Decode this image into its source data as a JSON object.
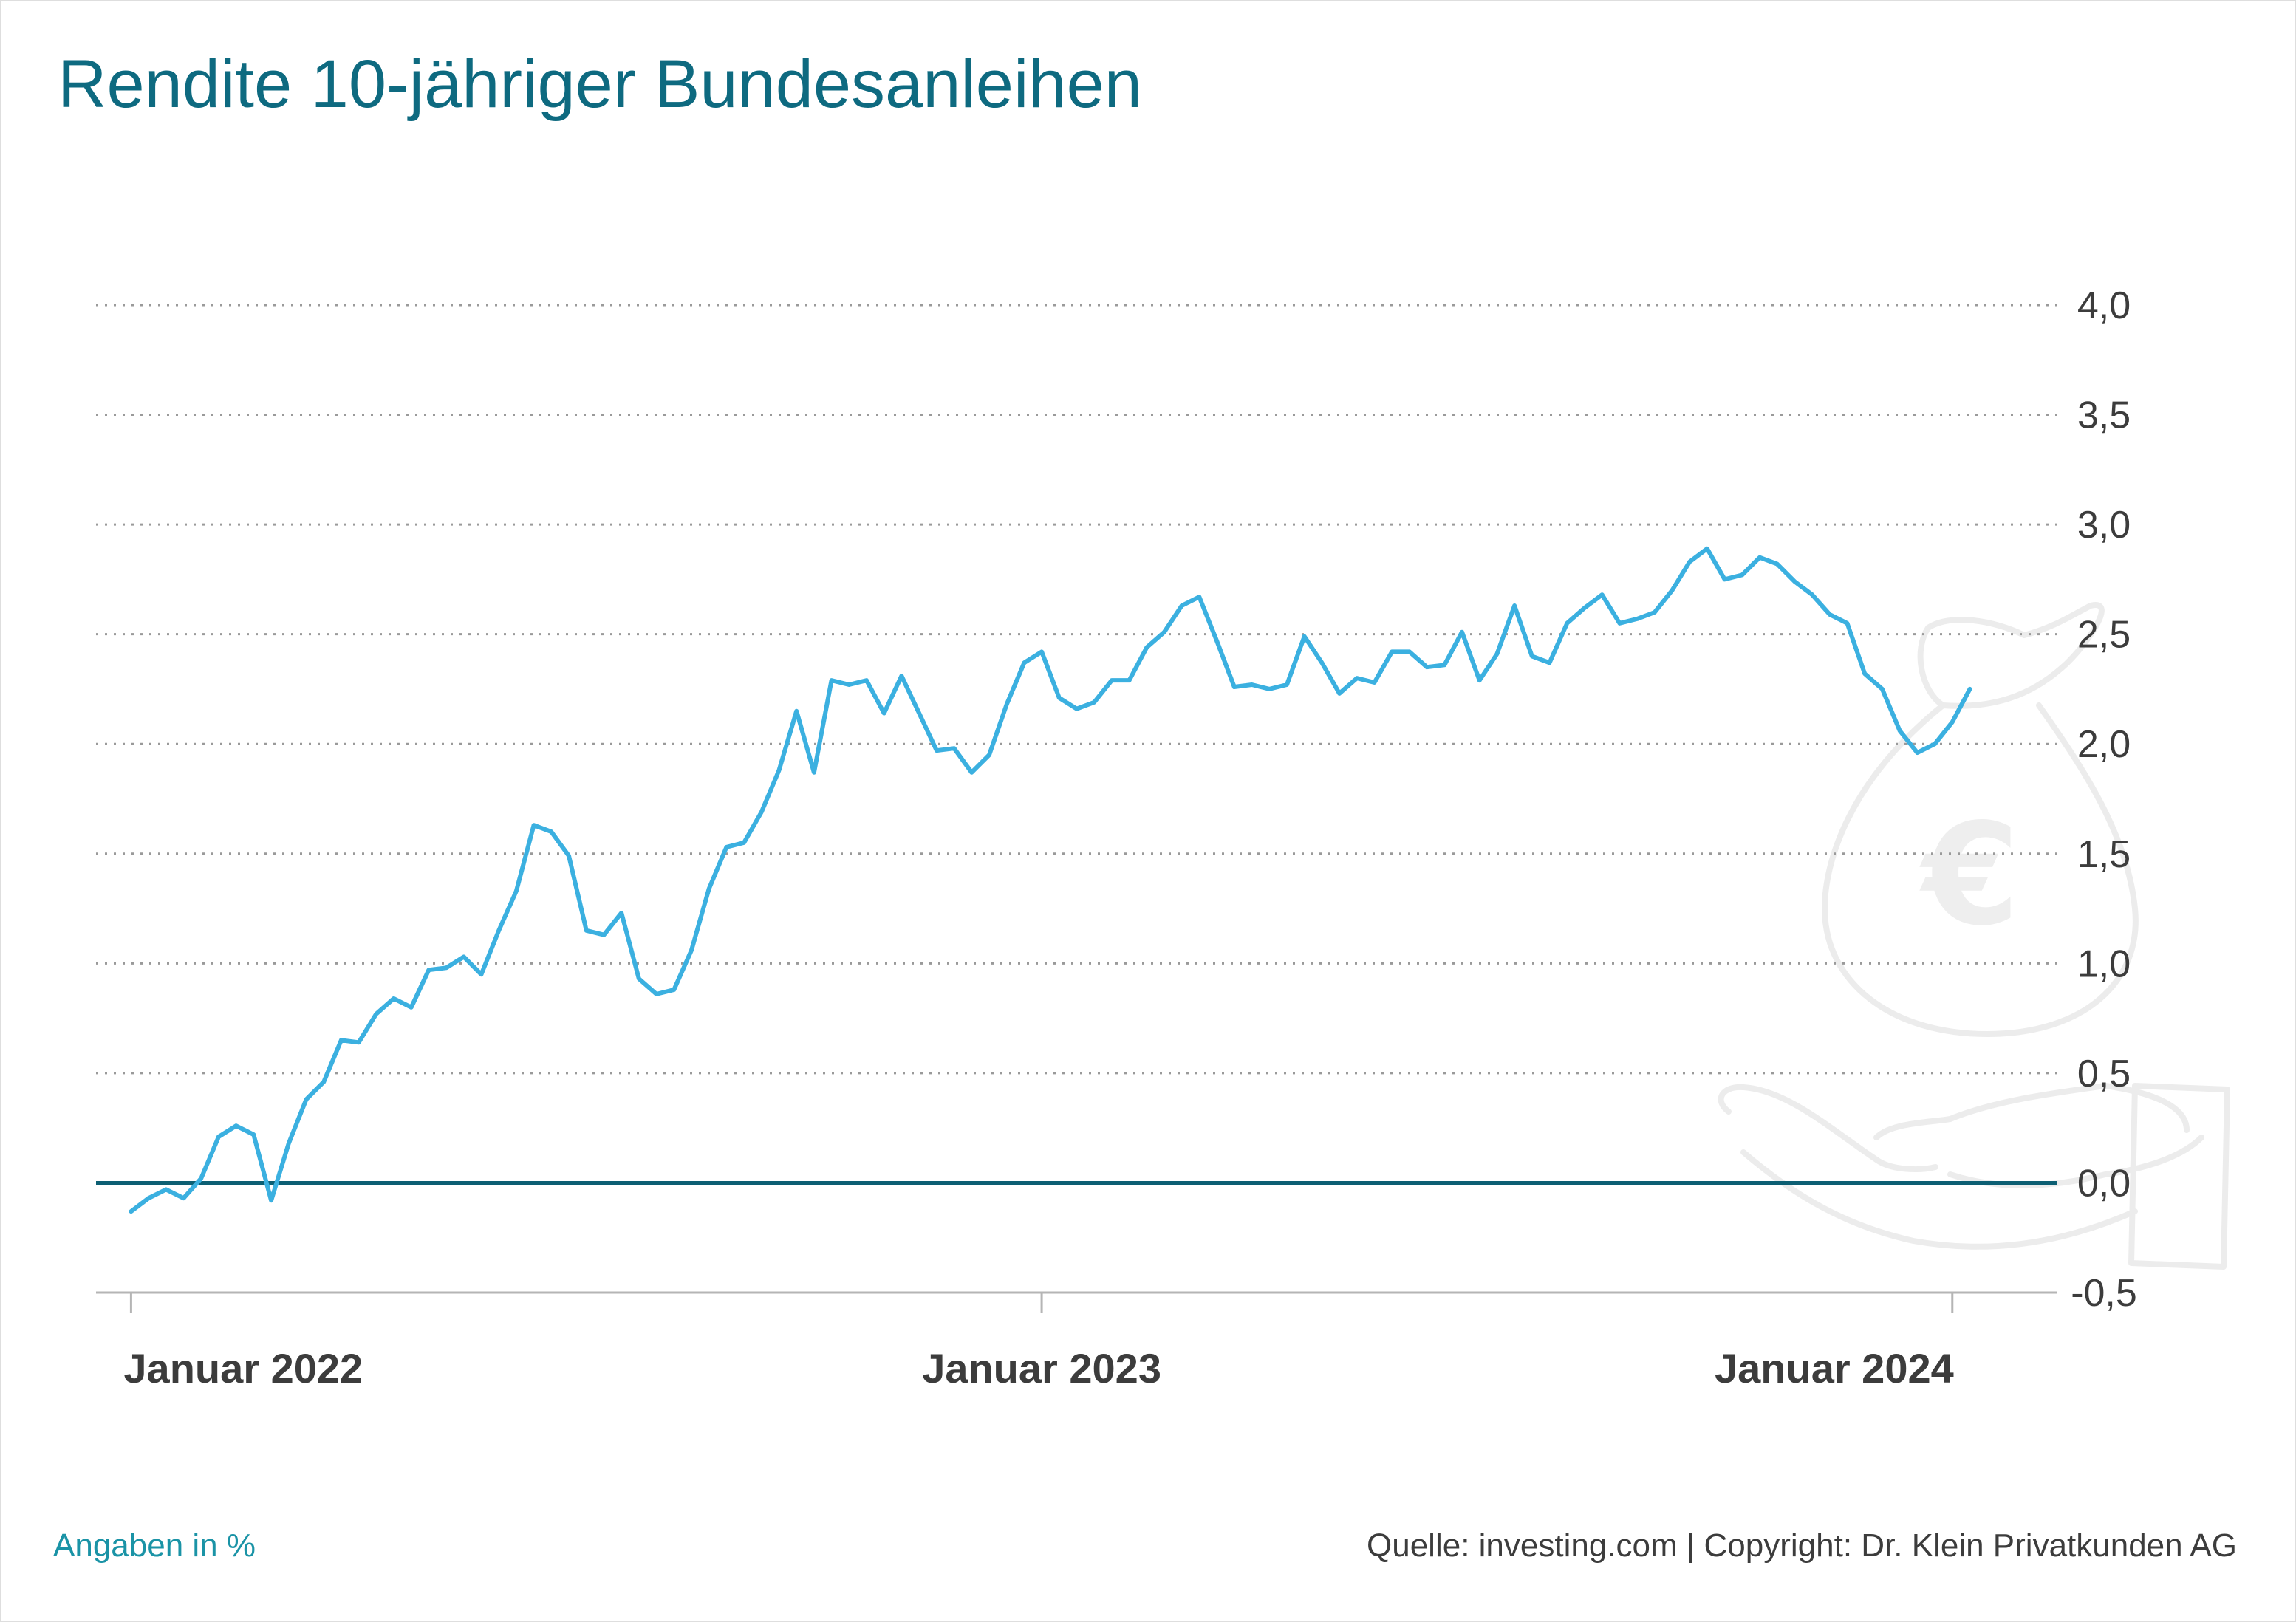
{
  "title": "Rendite 10-jähriger Bundesanleihen",
  "note": "Angaben in %",
  "source": "Quelle: investing.com | Copyright: Dr. Klein Privatkunden AG",
  "colors": {
    "title": "#0e6a80",
    "line": "#3bb0e0",
    "zero_line": "#0d5f73",
    "grid": "#9a9a9a",
    "note": "#1a93a6"
  },
  "icons": [
    "money-bag-icon",
    "euro-icon",
    "open-hand-icon"
  ],
  "chart_data": {
    "type": "line",
    "title": "Rendite 10-jähriger Bundesanleihen",
    "xlabel": "",
    "ylabel": "",
    "ylim": [
      -0.5,
      4.0
    ],
    "yticks": [
      4.0,
      3.5,
      3.0,
      2.5,
      2.0,
      1.5,
      1.0,
      0.5,
      0.0,
      -0.5
    ],
    "ytick_labels": [
      "4,0",
      "3,5",
      "3,0",
      "2,5",
      "2,0",
      "1,5",
      "1,0",
      "0,5",
      "0,0",
      "-0,5"
    ],
    "xlim": [
      "2021-12-20",
      "2024-02-12"
    ],
    "xticks": [
      "2022-01-03",
      "2023-01-02",
      "2024-01-01"
    ],
    "xtick_labels": [
      "Januar 2022",
      "Januar 2023",
      "Januar 2024"
    ],
    "grid": "horizontal-dotted",
    "legend": "none",
    "series": [
      {
        "x": [
          "2022-01-03",
          "2022-01-10",
          "2022-01-17",
          "2022-01-24",
          "2022-01-31",
          "2022-02-07",
          "2022-02-14",
          "2022-02-21",
          "2022-02-28",
          "2022-03-07",
          "2022-03-14",
          "2022-03-21",
          "2022-03-28",
          "2022-04-04",
          "2022-04-11",
          "2022-04-18",
          "2022-04-25",
          "2022-05-02",
          "2022-05-09",
          "2022-05-16",
          "2022-05-23",
          "2022-05-30",
          "2022-06-06",
          "2022-06-13",
          "2022-06-20",
          "2022-06-27",
          "2022-07-04",
          "2022-07-11",
          "2022-07-18",
          "2022-07-25",
          "2022-08-01",
          "2022-08-08",
          "2022-08-15",
          "2022-08-22",
          "2022-08-29",
          "2022-09-05",
          "2022-09-12",
          "2022-09-19",
          "2022-09-26",
          "2022-10-03",
          "2022-10-10",
          "2022-10-17",
          "2022-10-24",
          "2022-10-31",
          "2022-11-07",
          "2022-11-14",
          "2022-11-21",
          "2022-11-28",
          "2022-12-05",
          "2022-12-12",
          "2022-12-19",
          "2022-12-26",
          "2023-01-02",
          "2023-01-09",
          "2023-01-16",
          "2023-01-23",
          "2023-01-30",
          "2023-02-06",
          "2023-02-13",
          "2023-02-20",
          "2023-02-27",
          "2023-03-06",
          "2023-03-13",
          "2023-03-20",
          "2023-03-27",
          "2023-04-03",
          "2023-04-10",
          "2023-04-17",
          "2023-04-24",
          "2023-05-01",
          "2023-05-08",
          "2023-05-15",
          "2023-05-22",
          "2023-05-29",
          "2023-06-05",
          "2023-06-12",
          "2023-06-19",
          "2023-06-26",
          "2023-07-03",
          "2023-07-10",
          "2023-07-17",
          "2023-07-24",
          "2023-07-31",
          "2023-08-07",
          "2023-08-14",
          "2023-08-21",
          "2023-08-28",
          "2023-09-04",
          "2023-09-11",
          "2023-09-18",
          "2023-09-25",
          "2023-10-02",
          "2023-10-09",
          "2023-10-16",
          "2023-10-23",
          "2023-10-30",
          "2023-11-06",
          "2023-11-13",
          "2023-11-20",
          "2023-11-27",
          "2023-12-04",
          "2023-12-11",
          "2023-12-18",
          "2023-12-25",
          "2024-01-01",
          "2024-01-08"
        ],
        "values": [
          -0.13,
          -0.07,
          -0.03,
          -0.07,
          0.02,
          0.21,
          0.26,
          0.22,
          -0.08,
          0.18,
          0.38,
          0.46,
          0.65,
          0.64,
          0.77,
          0.84,
          0.8,
          0.97,
          0.98,
          1.03,
          0.95,
          1.15,
          1.33,
          1.63,
          1.6,
          1.49,
          1.15,
          1.13,
          1.23,
          0.93,
          0.86,
          0.88,
          1.06,
          1.34,
          1.53,
          1.55,
          1.69,
          1.88,
          2.15,
          1.87,
          2.29,
          2.27,
          2.29,
          2.14,
          2.31,
          2.14,
          1.97,
          1.98,
          1.87,
          1.95,
          2.18,
          2.37,
          2.42,
          2.21,
          2.16,
          2.19,
          2.29,
          2.29,
          2.44,
          2.51,
          2.63,
          2.67,
          2.47,
          2.26,
          2.27,
          2.25,
          2.27,
          2.49,
          2.37,
          2.23,
          2.3,
          2.28,
          2.42,
          2.42,
          2.35,
          2.36,
          2.51,
          2.29,
          2.41,
          2.63,
          2.4,
          2.37,
          2.55,
          2.62,
          2.68,
          2.55,
          2.57,
          2.6,
          2.7,
          2.83,
          2.89,
          2.75,
          2.77,
          2.85,
          2.82,
          2.74,
          2.68,
          2.59,
          2.55,
          2.32,
          2.25,
          2.06,
          1.96,
          2.0,
          2.1,
          2.25
        ]
      }
    ]
  }
}
